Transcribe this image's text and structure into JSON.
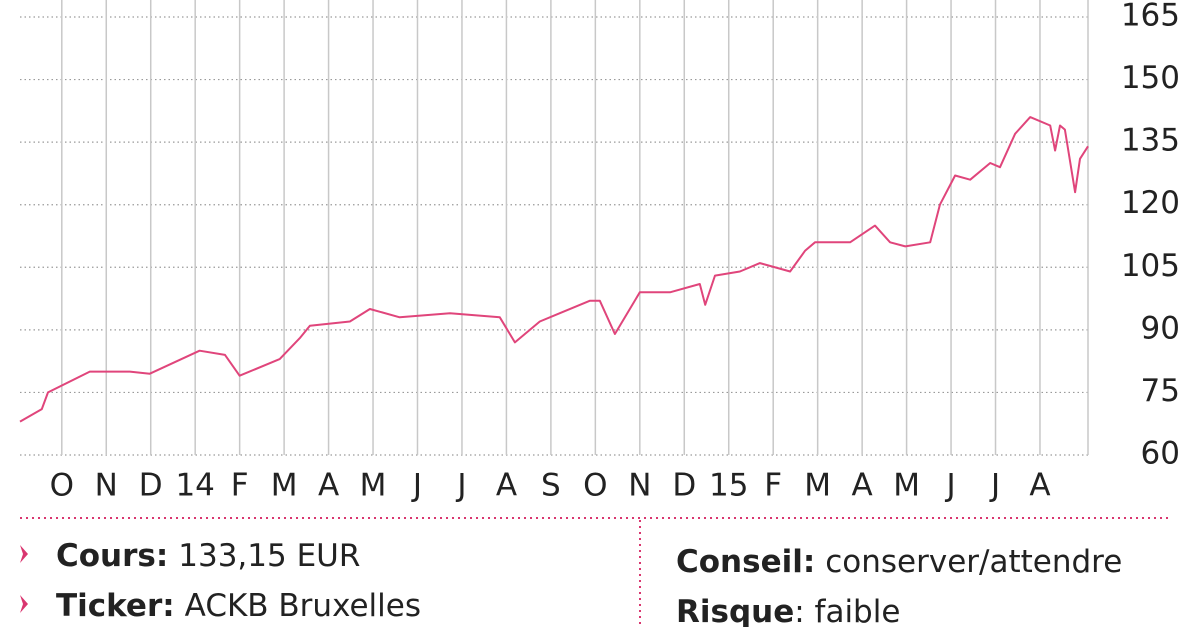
{
  "chart_data": {
    "type": "line",
    "color": "#e0457b",
    "x": [
      -0.94,
      -0.45,
      -0.31,
      0.63,
      1.53,
      1.98,
      3.1,
      3.67,
      4.0,
      4.9,
      5.35,
      5.58,
      6.48,
      6.93,
      7.6,
      8.73,
      9.85,
      10.19,
      10.75,
      11.2,
      11.88,
      12.1,
      12.44,
      13.0,
      13.68,
      14.35,
      14.47,
      14.69,
      15.25,
      15.7,
      16.38,
      16.72,
      16.94,
      17.73,
      18.29,
      18.63,
      18.97,
      19.53,
      19.75,
      20.09,
      20.43,
      20.88,
      21.1,
      21.44,
      21.78,
      22.23,
      22.34,
      22.45,
      22.56,
      22.79,
      22.9,
      23.08
    ],
    "values": [
      68,
      71,
      75,
      80,
      80,
      79.5,
      85,
      84,
      79,
      83,
      88,
      91,
      92,
      95,
      93,
      94,
      93,
      87,
      92,
      94,
      97,
      97,
      89,
      99,
      99,
      101,
      96,
      103,
      104,
      106,
      104,
      109,
      111,
      111,
      115,
      111,
      110,
      111,
      120,
      127,
      126,
      130,
      129,
      137,
      141,
      139,
      133,
      139,
      138,
      123,
      131,
      134
    ],
    "xlim": [
      -0.94,
      23.08
    ],
    "xticks": [
      {
        "value": 0,
        "label": "O"
      },
      {
        "value": 1,
        "label": "N"
      },
      {
        "value": 2,
        "label": "D"
      },
      {
        "value": 3,
        "label": "14"
      },
      {
        "value": 4,
        "label": "F"
      },
      {
        "value": 5,
        "label": "M"
      },
      {
        "value": 6,
        "label": "A"
      },
      {
        "value": 7,
        "label": "M"
      },
      {
        "value": 8,
        "label": "J"
      },
      {
        "value": 9,
        "label": "J"
      },
      {
        "value": 10,
        "label": "A"
      },
      {
        "value": 11,
        "label": "S"
      },
      {
        "value": 12,
        "label": "O"
      },
      {
        "value": 13,
        "label": "N"
      },
      {
        "value": 14,
        "label": "D"
      },
      {
        "value": 15,
        "label": "15"
      },
      {
        "value": 16,
        "label": "F"
      },
      {
        "value": 17,
        "label": "M"
      },
      {
        "value": 18,
        "label": "A"
      },
      {
        "value": 19,
        "label": "M"
      },
      {
        "value": 20,
        "label": "J"
      },
      {
        "value": 21,
        "label": "J"
      },
      {
        "value": 22,
        "label": "A"
      }
    ],
    "ylim": [
      60,
      165
    ],
    "yticks": [
      60,
      75,
      90,
      105,
      120,
      135,
      150,
      165
    ],
    "grid": true
  },
  "info": {
    "left": [
      {
        "label": "Cours:",
        "value": "133,15 EUR"
      },
      {
        "label": "Ticker:",
        "value": "ACKB Bruxelles"
      }
    ],
    "right": [
      {
        "label": "Conseil:",
        "value": "conserver/attendre"
      },
      {
        "label": "Risque",
        "value": ": faible"
      }
    ]
  }
}
